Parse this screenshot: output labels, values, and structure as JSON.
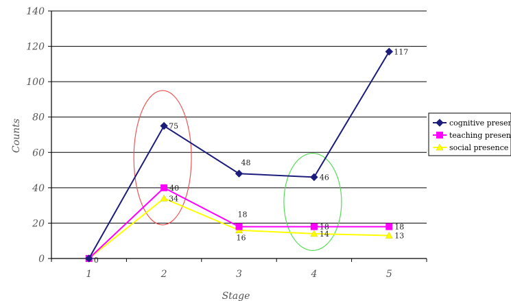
{
  "chart_data": {
    "type": "line",
    "title": "",
    "xlabel": "Stage",
    "ylabel": "Counts",
    "categories": [
      "1",
      "2",
      "3",
      "4",
      "5"
    ],
    "y_ticks": [
      "0",
      "20",
      "40",
      "60",
      "80",
      "100",
      "120",
      "140"
    ],
    "ylim": [
      0,
      140
    ],
    "grid": "horizontal",
    "legend_position": "right",
    "series": [
      {
        "name": "cognitive presence",
        "values": [
          0,
          75,
          48,
          46,
          117
        ],
        "labels": [
          "",
          "75",
          "48",
          "46",
          "117"
        ],
        "color": "#1c1c7a",
        "marker": "diamond"
      },
      {
        "name": "teaching presence",
        "values": [
          0,
          40,
          18,
          18,
          18
        ],
        "labels": [
          "",
          "40",
          "18",
          "18",
          "18"
        ],
        "color": "#ff00ff",
        "marker": "square"
      },
      {
        "name": "social presence",
        "values": [
          0,
          34,
          16,
          14,
          13
        ],
        "labels": [
          "0",
          "34",
          "16",
          "14",
          "13"
        ],
        "color": "#ffff00",
        "marker": "triangle"
      }
    ],
    "annotations": [
      {
        "type": "ellipse",
        "category": "2",
        "y_center": 57,
        "y_half_height": 38,
        "color": "#ee5555"
      },
      {
        "type": "ellipse",
        "category": "4",
        "y_center": 32,
        "y_half_height": 27.5,
        "color": "#55dd55"
      }
    ]
  }
}
